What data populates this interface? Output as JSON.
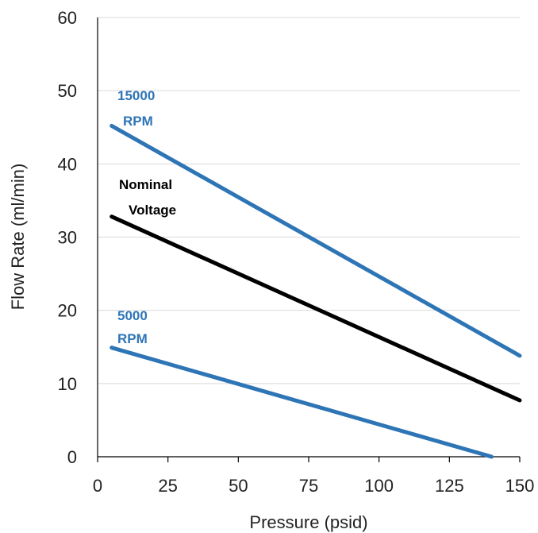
{
  "chart_data": {
    "type": "line",
    "title": "",
    "xlabel": "Pressure (psid)",
    "ylabel": "Flow Rate (ml/min)",
    "xlim": [
      0,
      150
    ],
    "ylim": [
      0,
      60
    ],
    "x_ticks": [
      0,
      25,
      50,
      75,
      100,
      125,
      150
    ],
    "y_ticks": [
      0,
      10,
      20,
      30,
      40,
      50,
      60
    ],
    "grid": "horizontal",
    "legend": "none",
    "series": [
      {
        "name": "15000 RPM",
        "label_lines": [
          "15000",
          "RPM"
        ],
        "color": "#2e75b6",
        "x": [
          5,
          150
        ],
        "y": [
          45.2,
          13.8
        ]
      },
      {
        "name": "Nominal Voltage",
        "label_lines": [
          "Nominal",
          "Voltage"
        ],
        "color": "#000000",
        "x": [
          5,
          150
        ],
        "y": [
          32.8,
          7.7
        ]
      },
      {
        "name": "5000 RPM",
        "label_lines": [
          "5000",
          "RPM"
        ],
        "color": "#2e75b6",
        "x": [
          5,
          140
        ],
        "y": [
          14.9,
          0
        ]
      }
    ]
  }
}
